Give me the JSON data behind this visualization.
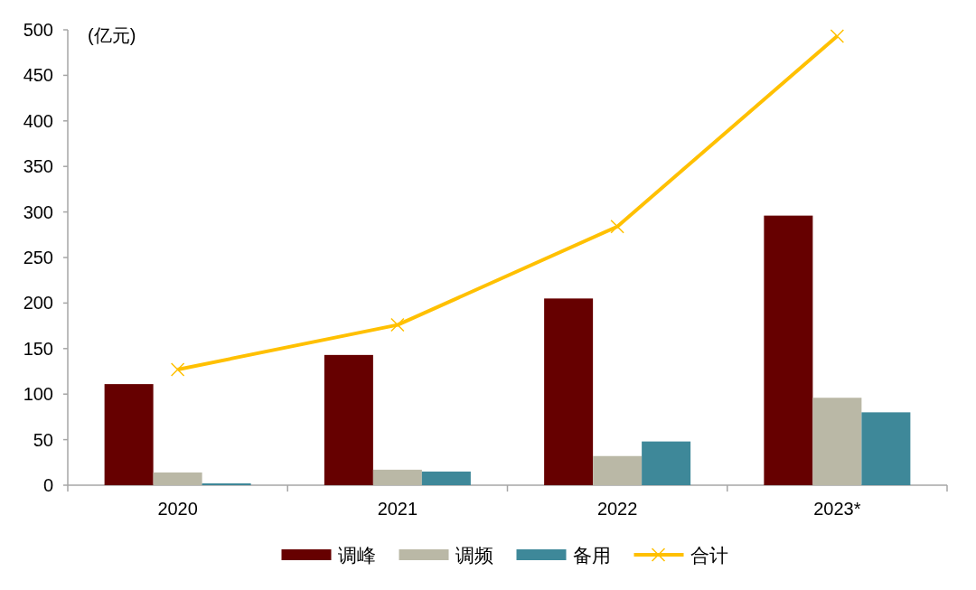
{
  "chart_data": {
    "type": "bar",
    "ylabel": "(亿元)",
    "categories": [
      "2020",
      "2021",
      "2022",
      "2023*"
    ],
    "series": [
      {
        "name": "调峰",
        "color": "#660000",
        "values": [
          111,
          143,
          205,
          296
        ]
      },
      {
        "name": "调频",
        "color": "#bab8a6",
        "values": [
          14,
          17,
          32,
          96
        ]
      },
      {
        "name": "备用",
        "color": "#3e8899",
        "values": [
          2,
          15,
          48,
          80
        ]
      },
      {
        "name": "合计",
        "type": "line",
        "marker": "cross",
        "color": "#ffc000",
        "values": [
          127,
          176,
          284,
          493
        ]
      }
    ],
    "ylim": [
      0,
      500
    ],
    "yticks": [
      0,
      50,
      100,
      150,
      200,
      250,
      300,
      350,
      400,
      450,
      500
    ],
    "legend": "bottom"
  }
}
